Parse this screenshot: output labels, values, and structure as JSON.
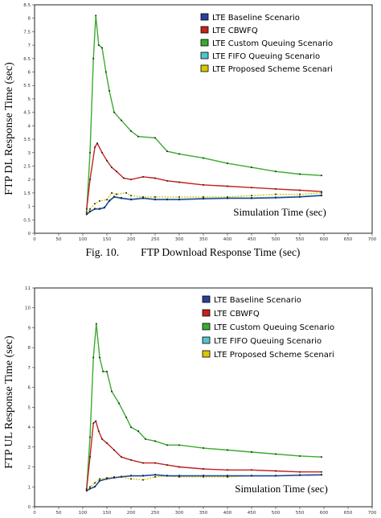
{
  "chart_data": [
    {
      "type": "line",
      "caption": "Fig. 10.        FTP Download Response Time (sec)",
      "xlabel": "Simulation Time (sec)",
      "ylabel": "FTP DL Response Time (sec)",
      "xlim": [
        0,
        700
      ],
      "ylim": [
        0,
        8.5
      ],
      "xticks": [
        0,
        50,
        100,
        150,
        200,
        250,
        300,
        350,
        400,
        450,
        500,
        550,
        600,
        650,
        700
      ],
      "yticks": [
        0,
        0.5,
        1,
        1.5,
        2,
        2.5,
        3,
        3.5,
        4,
        4.5,
        5,
        5.5,
        6,
        6.5,
        7,
        7.5,
        8,
        8.5
      ],
      "legend_position": "top-right",
      "grid": false,
      "series": [
        {
          "name": "LTE Baseline Scenario",
          "color": "#2b3f9e",
          "x": [
            108,
            115,
            125,
            135,
            145,
            155,
            165,
            180,
            200,
            225,
            250,
            275,
            300,
            350,
            400,
            450,
            500,
            550,
            595
          ],
          "y": [
            0.7,
            0.8,
            0.9,
            0.9,
            0.95,
            1.2,
            1.35,
            1.3,
            1.25,
            1.3,
            1.25,
            1.25,
            1.25,
            1.28,
            1.3,
            1.3,
            1.32,
            1.35,
            1.4
          ]
        },
        {
          "name": "LTE CBWFQ",
          "color": "#c8201f",
          "x": [
            108,
            115,
            125,
            130,
            140,
            150,
            160,
            170,
            185,
            200,
            225,
            250,
            275,
            300,
            350,
            400,
            450,
            500,
            550,
            595
          ],
          "y": [
            0.9,
            2.0,
            3.2,
            3.35,
            3.0,
            2.7,
            2.45,
            2.3,
            2.05,
            2.0,
            2.1,
            2.05,
            1.95,
            1.9,
            1.8,
            1.75,
            1.7,
            1.65,
            1.6,
            1.55
          ]
        },
        {
          "name": "LTE Custom Queuing Scenario",
          "color": "#3aab2e",
          "x": [
            108,
            115,
            122,
            127,
            133,
            140,
            148,
            155,
            165,
            180,
            200,
            215,
            250,
            275,
            300,
            350,
            400,
            450,
            500,
            550,
            595
          ],
          "y": [
            0.8,
            3.0,
            6.5,
            8.1,
            7.0,
            6.9,
            6.0,
            5.3,
            4.5,
            4.2,
            3.8,
            3.6,
            3.55,
            3.05,
            2.95,
            2.8,
            2.6,
            2.45,
            2.3,
            2.2,
            2.15
          ]
        },
        {
          "name": "LTE FIFO Queuing Scenario",
          "color": "#53c4cf",
          "x": [
            108,
            115,
            125,
            135,
            145,
            155,
            165,
            180,
            200,
            225,
            250,
            275,
            300,
            350,
            400,
            450,
            500,
            550,
            595
          ],
          "y": [
            0.72,
            0.82,
            0.92,
            0.92,
            0.97,
            1.22,
            1.37,
            1.32,
            1.27,
            1.32,
            1.27,
            1.27,
            1.27,
            1.3,
            1.32,
            1.32,
            1.34,
            1.37,
            1.42
          ]
        },
        {
          "name": "LTE Proposed Scheme Scenari",
          "color": "#d9c800",
          "x": [
            108,
            115,
            125,
            135,
            150,
            160,
            170,
            190,
            200,
            225,
            250,
            300,
            350,
            400,
            450,
            500,
            550,
            595
          ],
          "y": [
            0.75,
            0.9,
            1.1,
            1.2,
            1.25,
            1.5,
            1.45,
            1.5,
            1.4,
            1.35,
            1.35,
            1.35,
            1.35,
            1.35,
            1.4,
            1.45,
            1.45,
            1.5
          ]
        }
      ]
    },
    {
      "type": "line",
      "caption": "",
      "xlabel": "Simulation Time (sec)",
      "ylabel": "FTP UL Response Time (sec)",
      "xlim": [
        0,
        700
      ],
      "ylim": [
        0,
        11
      ],
      "xticks": [
        0,
        50,
        100,
        150,
        200,
        250,
        300,
        350,
        400,
        450,
        500,
        550,
        600,
        650,
        700
      ],
      "yticks": [
        0,
        1,
        2,
        3,
        4,
        5,
        6,
        7,
        8,
        9,
        10,
        11
      ],
      "legend_position": "top-right",
      "grid": false,
      "series": [
        {
          "name": "LTE Baseline Scenario",
          "color": "#2b3f9e",
          "x": [
            108,
            115,
            125,
            135,
            150,
            165,
            180,
            200,
            225,
            250,
            275,
            300,
            350,
            400,
            450,
            500,
            550,
            595
          ],
          "y": [
            0.8,
            0.9,
            1.0,
            1.3,
            1.4,
            1.45,
            1.5,
            1.55,
            1.55,
            1.6,
            1.55,
            1.55,
            1.55,
            1.55,
            1.55,
            1.55,
            1.58,
            1.6
          ]
        },
        {
          "name": "LTE CBWFQ",
          "color": "#c8201f",
          "x": [
            108,
            115,
            122,
            127,
            133,
            140,
            150,
            165,
            180,
            200,
            225,
            250,
            275,
            300,
            350,
            400,
            450,
            500,
            550,
            595
          ],
          "y": [
            0.9,
            2.5,
            4.2,
            4.3,
            3.8,
            3.4,
            3.2,
            2.85,
            2.5,
            2.35,
            2.2,
            2.2,
            2.1,
            2.0,
            1.9,
            1.85,
            1.85,
            1.8,
            1.75,
            1.75
          ]
        },
        {
          "name": "LTE Custom Queuing Scenario",
          "color": "#3aab2e",
          "x": [
            108,
            115,
            122,
            128,
            135,
            142,
            150,
            160,
            175,
            190,
            200,
            215,
            230,
            250,
            275,
            300,
            350,
            400,
            450,
            500,
            550,
            595
          ],
          "y": [
            0.9,
            3.5,
            7.5,
            9.2,
            7.5,
            6.8,
            6.8,
            5.8,
            5.2,
            4.5,
            4.0,
            3.8,
            3.4,
            3.3,
            3.1,
            3.1,
            2.95,
            2.85,
            2.75,
            2.65,
            2.55,
            2.5
          ]
        },
        {
          "name": "LTE FIFO Queuing Scenario",
          "color": "#53c4cf",
          "x": [
            108,
            115,
            125,
            135,
            150,
            165,
            180,
            200,
            225,
            250,
            275,
            300,
            350,
            400,
            450,
            500,
            550,
            595
          ],
          "y": [
            0.82,
            0.92,
            1.02,
            1.32,
            1.42,
            1.47,
            1.52,
            1.57,
            1.57,
            1.62,
            1.57,
            1.57,
            1.57,
            1.57,
            1.57,
            1.57,
            1.6,
            1.62
          ]
        },
        {
          "name": "LTE Proposed Scheme Scenari",
          "color": "#d9c800",
          "x": [
            108,
            115,
            125,
            135,
            150,
            165,
            180,
            200,
            225,
            250,
            275,
            300,
            350,
            400,
            450,
            500,
            550,
            595
          ],
          "y": [
            0.85,
            1.0,
            1.2,
            1.4,
            1.45,
            1.5,
            1.5,
            1.4,
            1.35,
            1.5,
            1.55,
            1.5,
            1.5,
            1.5,
            1.55,
            1.55,
            1.6,
            1.6
          ]
        }
      ]
    }
  ]
}
